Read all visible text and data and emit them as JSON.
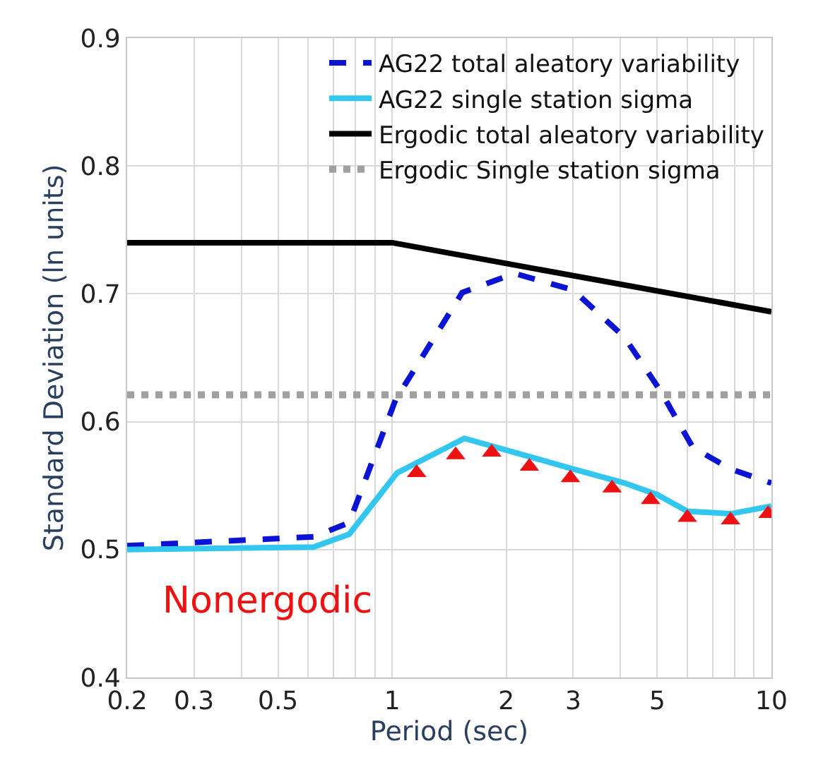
{
  "chart_data": {
    "type": "line",
    "xlabel": "Period (sec)",
    "ylabel": "Standard Deviation (ln units)",
    "log": "x",
    "grid": true,
    "legend": "top right",
    "xlim": [
      0.2,
      10
    ],
    "ylim": [
      0.4,
      0.9
    ],
    "xticks": [
      0.2,
      0.3,
      {
        "value": 0.4,
        "label": null
      },
      0.5,
      {
        "value": 0.6,
        "label": null
      },
      {
        "value": 0.7,
        "label": null
      },
      {
        "value": 0.8,
        "label": null
      },
      {
        "value": 0.9,
        "label": null
      },
      1,
      2,
      3,
      {
        "value": 4,
        "label": null
      },
      5,
      {
        "value": 6,
        "label": null
      },
      {
        "value": 7,
        "label": null
      },
      {
        "value": 8,
        "label": null
      },
      {
        "value": 9,
        "label": null
      },
      10
    ],
    "yticks": [
      0.4,
      0.5,
      0.6,
      0.7,
      0.8,
      0.9
    ],
    "annotations": [
      "Nonergodic"
    ],
    "series": [
      {
        "name": "AG22 total aleatory variability",
        "color": "#0a14d2",
        "line_style": "dashed",
        "x": [
          0.2,
          0.62,
          0.77,
          1.02,
          1.53,
          2.1,
          3,
          4.1,
          5.1,
          6.2,
          7.8,
          10
        ],
        "values": [
          0.503,
          0.51,
          0.521,
          0.617,
          0.701,
          0.716,
          0.703,
          0.666,
          0.624,
          0.58,
          0.563,
          0.552
        ]
      },
      {
        "name": "AG22 single station sigma",
        "color": "#33c6ee",
        "line_style": "solid",
        "x": [
          0.2,
          0.62,
          0.77,
          1.03,
          1.55,
          2.1,
          3,
          4.1,
          5,
          6,
          7.8,
          10
        ],
        "values": [
          0.5,
          0.502,
          0.512,
          0.56,
          0.587,
          0.576,
          0.563,
          0.552,
          0.543,
          0.53,
          0.528,
          0.534
        ]
      },
      {
        "name": "Ergodic total aleatory variability",
        "color": "#000000",
        "line_style": "solid",
        "x": [
          0.2,
          1,
          10
        ],
        "values": [
          0.74,
          0.74,
          0.686
        ]
      },
      {
        "name": "Ergodic Single station sigma",
        "color": "#a0a0a0",
        "line_style": "dotted",
        "x": [
          0.2,
          10
        ],
        "values": [
          0.621,
          0.621
        ]
      },
      {
        "type": "scatter",
        "marker": "triangle",
        "color": "#ee1111",
        "x": [
          1.16,
          1.47,
          1.83,
          2.3,
          2.95,
          3.8,
          4.8,
          6.0,
          7.8,
          9.8
        ],
        "values": [
          0.56,
          0.574,
          0.576,
          0.565,
          0.556,
          0.548,
          0.539,
          0.525,
          0.523,
          0.528
        ]
      }
    ]
  }
}
